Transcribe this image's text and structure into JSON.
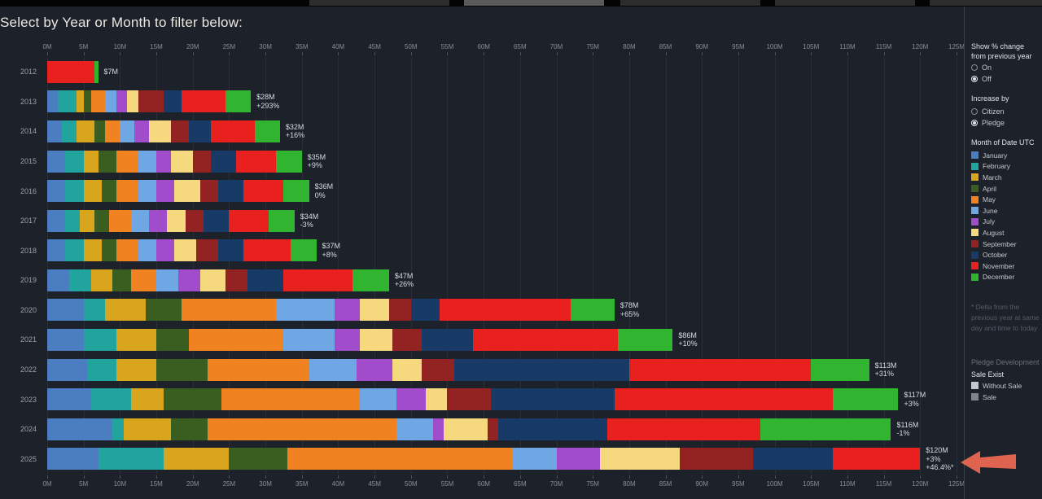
{
  "page": {
    "title": "Select by Year or Month to filter below:"
  },
  "chart_data": {
    "type": "bar",
    "orientation": "horizontal",
    "stacked": true,
    "unit": "$M",
    "x_max": 125,
    "x_ticks": [
      "0M",
      "5M",
      "10M",
      "15M",
      "20M",
      "25M",
      "30M",
      "35M",
      "40M",
      "45M",
      "50M",
      "55M",
      "60M",
      "65M",
      "70M",
      "75M",
      "80M",
      "85M",
      "90M",
      "95M",
      "100M",
      "105M",
      "110M",
      "115M",
      "120M",
      "125M"
    ],
    "categories": [
      "2012",
      "2013",
      "2014",
      "2015",
      "2016",
      "2017",
      "2018",
      "2019",
      "2020",
      "2021",
      "2022",
      "2023",
      "2024",
      "2025"
    ],
    "series": [
      {
        "name": "January",
        "color": "#4a7ec0",
        "values": [
          0,
          1.5,
          2,
          2.5,
          2.5,
          2.5,
          2.5,
          3,
          5,
          5,
          5.5,
          6,
          9,
          7
        ]
      },
      {
        "name": "February",
        "color": "#21a49d",
        "values": [
          0,
          2.5,
          2,
          2.5,
          2.5,
          2,
          2.5,
          3,
          3,
          4.5,
          4,
          5.5,
          1.5,
          9
        ]
      },
      {
        "name": "March",
        "color": "#d9a51c",
        "values": [
          0,
          1,
          2.5,
          2,
          2.5,
          2,
          2.5,
          3,
          5.5,
          5.5,
          5.5,
          4.5,
          6.5,
          9
        ]
      },
      {
        "name": "April",
        "color": "#3a5e20",
        "values": [
          0,
          1,
          1.5,
          2.5,
          2,
          2,
          2,
          2.5,
          5,
          4.5,
          7,
          8,
          5,
          8
        ]
      },
      {
        "name": "May",
        "color": "#f08222",
        "values": [
          0,
          2,
          2,
          3,
          3,
          3,
          3,
          3.5,
          13,
          13,
          14,
          19,
          26,
          31
        ]
      },
      {
        "name": "June",
        "color": "#6fa7e4",
        "values": [
          0,
          1.5,
          2,
          2.5,
          2.5,
          2.5,
          2.5,
          3,
          8,
          7,
          6.5,
          5,
          5,
          6
        ]
      },
      {
        "name": "July",
        "color": "#a14ccb",
        "values": [
          0,
          1.5,
          2,
          2,
          2.5,
          2.5,
          2.5,
          3,
          3.5,
          3.5,
          5,
          4,
          1.5,
          6
        ]
      },
      {
        "name": "August",
        "color": "#f6d87e",
        "values": [
          0,
          1.5,
          3,
          3,
          3.5,
          2.5,
          3,
          3.5,
          4,
          4.5,
          4,
          3,
          6,
          11
        ]
      },
      {
        "name": "September",
        "color": "#932322",
        "values": [
          0,
          3.5,
          2.5,
          2.5,
          2.5,
          2.5,
          3,
          3,
          3,
          4,
          4.5,
          6,
          1.5,
          10
        ]
      },
      {
        "name": "October",
        "color": "#173a66",
        "values": [
          0,
          2.5,
          3,
          3.5,
          3.5,
          3.5,
          3.5,
          5,
          4,
          7,
          24,
          17,
          15,
          11
        ]
      },
      {
        "name": "November",
        "color": "#e8201e",
        "values": [
          6.5,
          6,
          6,
          5.5,
          5.5,
          5.5,
          6.5,
          9.5,
          18,
          20,
          25,
          30,
          21,
          12
        ]
      },
      {
        "name": "December",
        "color": "#31b531",
        "values": [
          0.5,
          3.5,
          3.5,
          3.5,
          3.5,
          3.5,
          3.5,
          5,
          6,
          7.5,
          8,
          9,
          18,
          0
        ]
      }
    ],
    "bar_labels": [
      [
        "$7M"
      ],
      [
        "$28M",
        "+293%"
      ],
      [
        "$32M",
        "+16%"
      ],
      [
        "$35M",
        "+9%"
      ],
      [
        "$36M",
        "0%"
      ],
      [
        "$34M",
        "-3%"
      ],
      [
        "$37M",
        "+8%"
      ],
      [
        "$47M",
        "+26%"
      ],
      [
        "$78M",
        "+65%"
      ],
      [
        "$86M",
        "+10%"
      ],
      [
        "$113M",
        "+31%"
      ],
      [
        "$117M",
        "+3%"
      ],
      [
        "$116M",
        "-1%"
      ],
      [
        "$120M",
        "+3%",
        "+46.4%*"
      ]
    ]
  },
  "sidebar": {
    "show_pct": {
      "title_line1": "Show % change",
      "title_line2": "from previous year",
      "options": [
        {
          "label": "On",
          "selected": false
        },
        {
          "label": "Off",
          "selected": true
        }
      ]
    },
    "increase_by": {
      "title": "Increase by",
      "options": [
        {
          "label": "Citizen",
          "selected": false
        },
        {
          "label": "Pledge",
          "selected": true
        }
      ]
    },
    "month_legend": {
      "title": "Month of Date UTC"
    },
    "delta_note": [
      "* Delta from the",
      "previous year at same",
      "day and time to today"
    ],
    "pledge_dev": {
      "title": "Pledge Development",
      "subtitle": "Sale Exist",
      "items": [
        {
          "label": "Without Sale",
          "color": "#c5c9ce"
        },
        {
          "label": "Sale",
          "color": "#7f858c"
        }
      ]
    },
    "annotation_arrow_color": "#df6450"
  }
}
